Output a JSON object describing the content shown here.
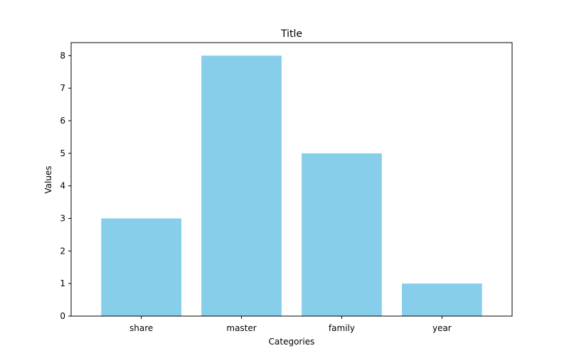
{
  "chart_data": {
    "type": "bar",
    "title": "Title",
    "xlabel": "Categories",
    "ylabel": "Values",
    "categories": [
      "share",
      "master",
      "family",
      "year"
    ],
    "values": [
      3,
      8,
      5,
      1
    ],
    "ylim": [
      0,
      8.4
    ],
    "yticks": [
      0,
      1,
      2,
      3,
      4,
      5,
      6,
      7,
      8
    ],
    "bar_color": "#87ceeb",
    "grid": false,
    "legend": "none"
  }
}
